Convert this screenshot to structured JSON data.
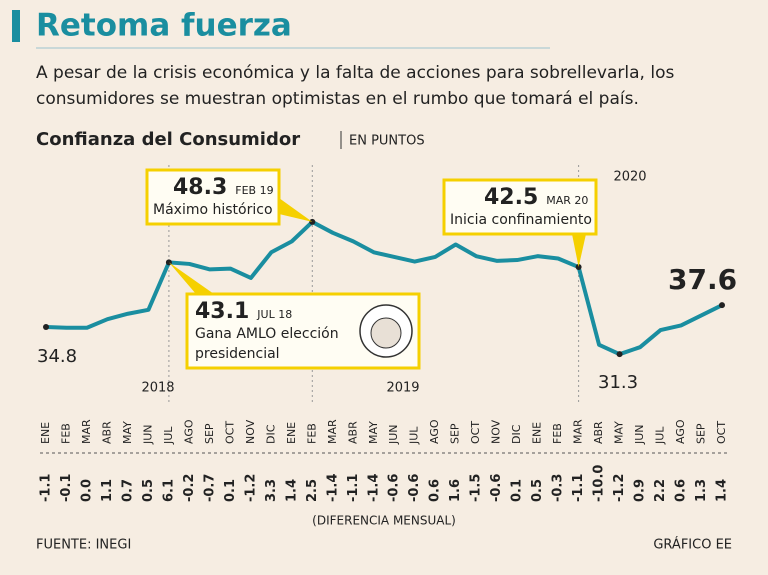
{
  "header": {
    "title": "Retoma fuerza",
    "subtitle": [
      "A pesar de la crisis económica y la falta de acciones para sobrellevarla, los",
      "consumidores se muestran optimistas en el rumbo que tomará el país."
    ]
  },
  "chart_data": {
    "type": "line",
    "title": "Confianza del Consumidor",
    "unit": "EN PUNTOS",
    "categories": [
      "ENE",
      "FEB",
      "MAR",
      "ABR",
      "MAY",
      "JUN",
      "JUL",
      "AGO",
      "SEP",
      "OCT",
      "NOV",
      "DIC",
      "ENE",
      "FEB",
      "MAR",
      "ABR",
      "MAY",
      "JUN",
      "JUL",
      "AGO",
      "SEP",
      "OCT",
      "NOV",
      "DIC",
      "ENE",
      "FEB",
      "MAR",
      "ABR",
      "MAY",
      "JUN",
      "JUL",
      "AGO",
      "SEP",
      "OCT"
    ],
    "values": [
      34.8,
      34.7,
      34.7,
      35.8,
      36.5,
      37.0,
      43.1,
      42.9,
      42.2,
      42.3,
      41.1,
      44.4,
      45.8,
      48.3,
      46.9,
      45.8,
      44.4,
      43.8,
      43.2,
      43.8,
      45.4,
      43.9,
      43.3,
      43.4,
      43.9,
      43.6,
      42.5,
      32.5,
      31.3,
      32.2,
      34.4,
      35.0,
      36.3,
      37.6
    ],
    "color": "#1a8ea0",
    "ylim": [
      30,
      50
    ],
    "years": [
      "2018",
      "2019",
      "2020"
    ],
    "annotations": [
      {
        "date": "FEB 19",
        "text": [
          "Máximo histórico"
        ]
      },
      {
        "date": "JUL 18",
        "text": [
          "Gana AMLO elección",
          "presidencial"
        ]
      },
      {
        "date": "MAR 20",
        "text": [
          "Inicia confinamiento"
        ]
      }
    ],
    "differences": [
      "-1.1",
      "-0.1",
      "0.0",
      "1.1",
      "0.7",
      "0.5",
      "6.1",
      "-0.2",
      "-0.7",
      "0.1",
      "-1.2",
      "3.3",
      "1.4",
      "2.5",
      "-1.4",
      "-1.1",
      "-1.4",
      "-0.6",
      "-0.6",
      "0.6",
      "1.6",
      "-1.5",
      "-0.6",
      "0.1",
      "0.5",
      "-0.3",
      "-1.1",
      "-10.0",
      "-1.2",
      "0.9",
      "2.2",
      "0.6",
      "1.3",
      "1.4"
    ],
    "differences_caption": "(DIFERENCIA MENSUAL)"
  },
  "footer": {
    "source": "FUENTE: INEGI",
    "credit": "GRÁFICO EE"
  }
}
